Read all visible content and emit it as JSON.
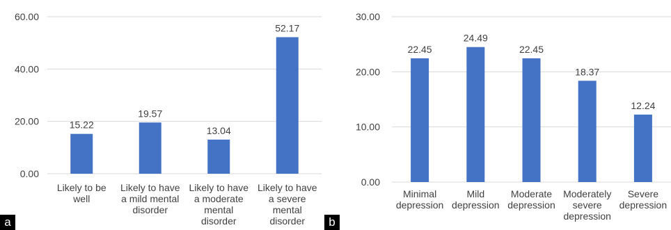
{
  "colors": {
    "bar": "#4472c4",
    "grid": "#d9d9d9",
    "text": "#404040"
  },
  "panel_labels": {
    "a": "a",
    "b": "b"
  },
  "chart_data": [
    {
      "type": "bar",
      "panel": "a",
      "categories": [
        [
          "Likely to be",
          "well"
        ],
        [
          "Likely to have",
          "a mild mental",
          "disorder"
        ],
        [
          "Likely to have",
          "a moderate",
          "mental",
          "disorder"
        ],
        [
          "Likely to have",
          "a severe",
          "mental",
          "disorder"
        ]
      ],
      "values": [
        15.22,
        19.57,
        13.04,
        52.17
      ],
      "data_labels": [
        "15.22",
        "19.57",
        "13.04",
        "52.17"
      ],
      "yticks": [
        "0.00",
        "20.00",
        "40.00",
        "60.00"
      ],
      "ylim": [
        0,
        60
      ],
      "grid": true
    },
    {
      "type": "bar",
      "panel": "b",
      "categories": [
        [
          "Minimal",
          "depression"
        ],
        [
          "Mild",
          "depression"
        ],
        [
          "Moderate",
          "depression"
        ],
        [
          "Moderately",
          "severe",
          "depression"
        ],
        [
          "Severe",
          "depression"
        ]
      ],
      "values": [
        22.45,
        24.49,
        22.45,
        18.37,
        12.24
      ],
      "data_labels": [
        "22.45",
        "24.49",
        "22.45",
        "18.37",
        "12.24"
      ],
      "yticks": [
        "0.00",
        "10.00",
        "20.00",
        "30.00"
      ],
      "ylim": [
        0,
        30
      ],
      "grid": true
    }
  ]
}
